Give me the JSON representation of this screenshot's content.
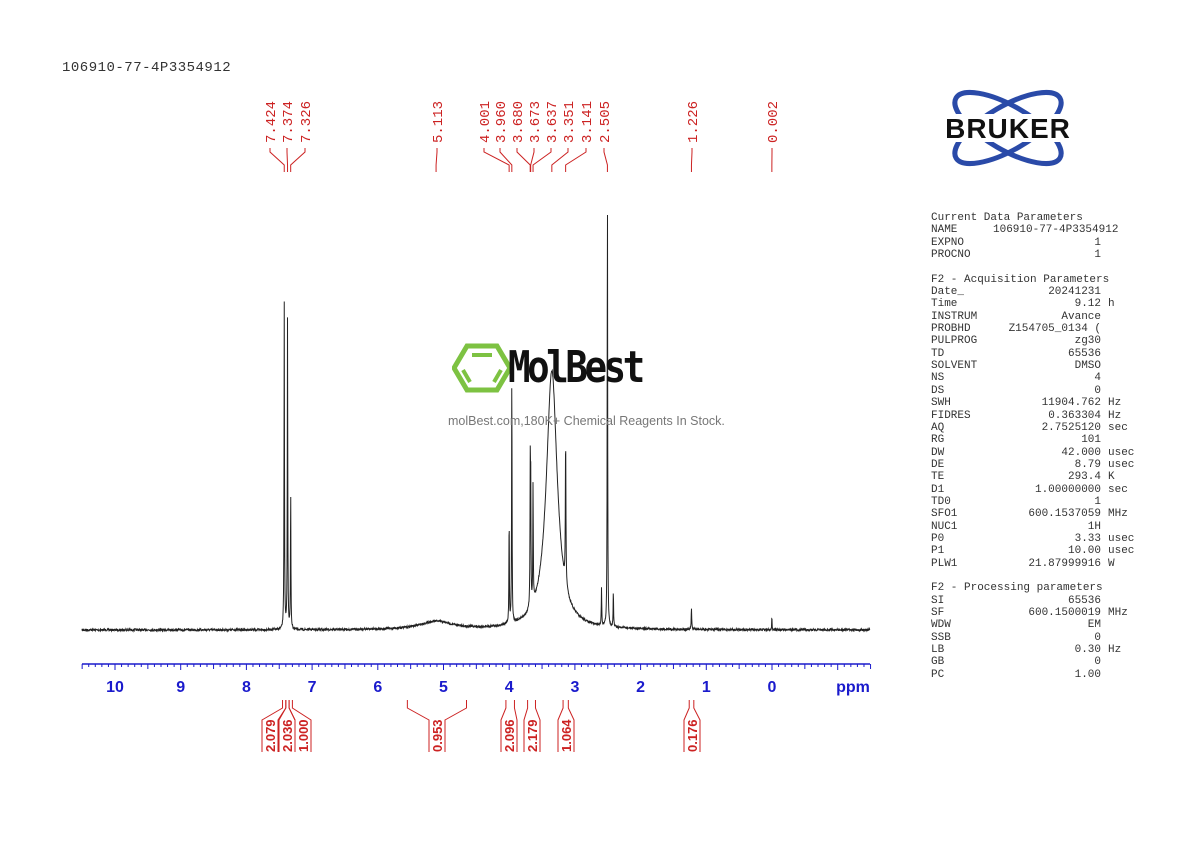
{
  "title": "106910-77-4P3354912",
  "logo": {
    "text": "BRUKER",
    "color": "#2a4aa8"
  },
  "watermark": {
    "name": "MolBest",
    "tagline": "molBest.com,180K+ Chemical Reagents In Stock.",
    "color": "#7dc242"
  },
  "parameters": {
    "current": {
      "heading": "Current Data Parameters",
      "rows": [
        {
          "k": "NAME",
          "v": "106910-77-4P3354912",
          "u": ""
        },
        {
          "k": "EXPNO",
          "v": "1",
          "u": ""
        },
        {
          "k": "PROCNO",
          "v": "1",
          "u": ""
        }
      ]
    },
    "acquisition": {
      "heading": "F2 - Acquisition Parameters",
      "rows": [
        {
          "k": "Date_",
          "v": "20241231",
          "u": ""
        },
        {
          "k": "Time",
          "v": "9.12",
          "u": "h"
        },
        {
          "k": "INSTRUM",
          "v": "Avance",
          "u": ""
        },
        {
          "k": "PROBHD",
          "v": "Z154705_0134 (",
          "u": ""
        },
        {
          "k": "PULPROG",
          "v": "zg30",
          "u": ""
        },
        {
          "k": "TD",
          "v": "65536",
          "u": ""
        },
        {
          "k": "SOLVENT",
          "v": "DMSO",
          "u": ""
        },
        {
          "k": "NS",
          "v": "4",
          "u": ""
        },
        {
          "k": "DS",
          "v": "0",
          "u": ""
        },
        {
          "k": "SWH",
          "v": "11904.762",
          "u": "Hz"
        },
        {
          "k": "FIDRES",
          "v": "0.363304",
          "u": "Hz"
        },
        {
          "k": "AQ",
          "v": "2.7525120",
          "u": "sec"
        },
        {
          "k": "RG",
          "v": "101",
          "u": ""
        },
        {
          "k": "DW",
          "v": "42.000",
          "u": "usec"
        },
        {
          "k": "DE",
          "v": "8.79",
          "u": "usec"
        },
        {
          "k": "TE",
          "v": "293.4",
          "u": "K"
        },
        {
          "k": "D1",
          "v": "1.00000000",
          "u": "sec"
        },
        {
          "k": "TD0",
          "v": "1",
          "u": ""
        },
        {
          "k": "SFO1",
          "v": "600.1537059",
          "u": "MHz"
        },
        {
          "k": "NUC1",
          "v": "1H",
          "u": ""
        },
        {
          "k": "P0",
          "v": "3.33",
          "u": "usec"
        },
        {
          "k": "P1",
          "v": "10.00",
          "u": "usec"
        },
        {
          "k": "PLW1",
          "v": "21.87999916",
          "u": "W"
        }
      ]
    },
    "processing": {
      "heading": "F2 - Processing parameters",
      "rows": [
        {
          "k": "SI",
          "v": "65536",
          "u": ""
        },
        {
          "k": "SF",
          "v": "600.1500019",
          "u": "MHz"
        },
        {
          "k": "WDW",
          "v": "EM",
          "u": ""
        },
        {
          "k": "SSB",
          "v": "0",
          "u": ""
        },
        {
          "k": "LB",
          "v": "0.30",
          "u": "Hz"
        },
        {
          "k": "GB",
          "v": "0",
          "u": ""
        },
        {
          "k": "PC",
          "v": "1.00",
          "u": ""
        }
      ]
    }
  },
  "chart_data": {
    "type": "line",
    "title": "",
    "xlabel": "ppm",
    "xlim": [
      10.5,
      -1.5
    ],
    "x_reversed": true,
    "xticks": [
      "10",
      "9",
      "8",
      "7",
      "6",
      "5",
      "4",
      "3",
      "2",
      "1",
      "0"
    ],
    "grid": false,
    "colors": {
      "spectrum": "#222222",
      "axis": "#1a1acc",
      "annotations": "#cc2222"
    },
    "peak_labels": [
      "7.424",
      "7.374",
      "7.326",
      "5.113",
      "4.001",
      "3.960",
      "3.680",
      "3.673",
      "3.637",
      "3.351",
      "3.141",
      "2.505",
      "1.226",
      "0.002"
    ],
    "peaks": [
      {
        "ppm": 7.424,
        "rel_intensity": 0.73,
        "width": 0.004
      },
      {
        "ppm": 7.374,
        "rel_intensity": 0.7,
        "width": 0.004
      },
      {
        "ppm": 7.326,
        "rel_intensity": 0.31,
        "width": 0.004
      },
      {
        "ppm": 5.113,
        "rel_intensity": 0.018,
        "width": 0.3
      },
      {
        "ppm": 4.001,
        "rel_intensity": 0.24,
        "width": 0.004
      },
      {
        "ppm": 3.96,
        "rel_intensity": 0.57,
        "width": 0.004
      },
      {
        "ppm": 3.68,
        "rel_intensity": 0.29,
        "width": 0.004
      },
      {
        "ppm": 3.673,
        "rel_intensity": 0.28,
        "width": 0.004
      },
      {
        "ppm": 3.637,
        "rel_intensity": 0.27,
        "width": 0.004
      },
      {
        "ppm": 3.351,
        "rel_intensity": 0.58,
        "width": 0.1
      },
      {
        "ppm": 3.141,
        "rel_intensity": 0.33,
        "width": 0.005
      },
      {
        "ppm": 2.505,
        "rel_intensity": 1.0,
        "width": 0.004
      },
      {
        "ppm": 2.595,
        "rel_intensity": 0.085,
        "width": 0.004
      },
      {
        "ppm": 2.415,
        "rel_intensity": 0.08,
        "width": 0.004
      },
      {
        "ppm": 1.226,
        "rel_intensity": 0.045,
        "width": 0.005
      },
      {
        "ppm": 0.002,
        "rel_intensity": 0.033,
        "width": 0.003
      }
    ],
    "integrals": [
      {
        "range": [
          7.45,
          7.4
        ],
        "value": "2.079"
      },
      {
        "range": [
          7.4,
          7.35
        ],
        "value": "2.036"
      },
      {
        "range": [
          7.35,
          7.3
        ],
        "value": "1.000"
      },
      {
        "range": [
          5.55,
          4.65
        ],
        "value": "0.953"
      },
      {
        "range": [
          4.05,
          3.92
        ],
        "value": "2.096"
      },
      {
        "range": [
          3.72,
          3.6
        ],
        "value": "2.179"
      },
      {
        "range": [
          3.18,
          3.1
        ],
        "value": "1.064"
      },
      {
        "range": [
          1.26,
          1.19
        ],
        "value": "0.176"
      }
    ]
  }
}
